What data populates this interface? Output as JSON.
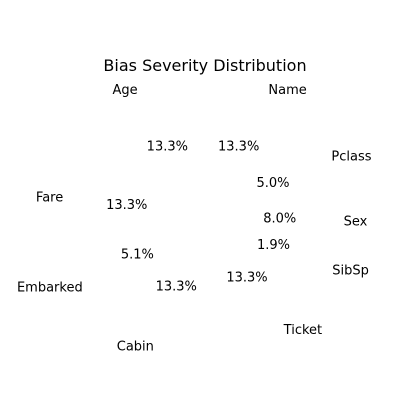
{
  "chart_data": {
    "type": "pie",
    "title": "Bias Severity Distribution",
    "slices": [
      {
        "label": "Age",
        "pct": "13.3%",
        "value": 13.3
      },
      {
        "label": "Fare",
        "pct": "13.3%",
        "value": 13.3
      },
      {
        "label": "Embarked",
        "pct": "5.1%",
        "value": 5.1
      },
      {
        "label": "Cabin",
        "pct": "13.3%",
        "value": 13.3
      },
      {
        "label": "Ticket",
        "pct": "13.3%",
        "value": 13.3
      },
      {
        "label": "SibSp",
        "pct": "1.9%",
        "value": 1.9
      },
      {
        "label": "Sex",
        "pct": "8.0%",
        "value": 8.0
      },
      {
        "label": "Pclass",
        "pct": "5.0%",
        "value": 5.0
      },
      {
        "label": "Name",
        "pct": "13.3%",
        "value": 13.3
      }
    ],
    "start_angle_deg": 90,
    "direction": "counterclockwise",
    "colors_visible": false
  }
}
